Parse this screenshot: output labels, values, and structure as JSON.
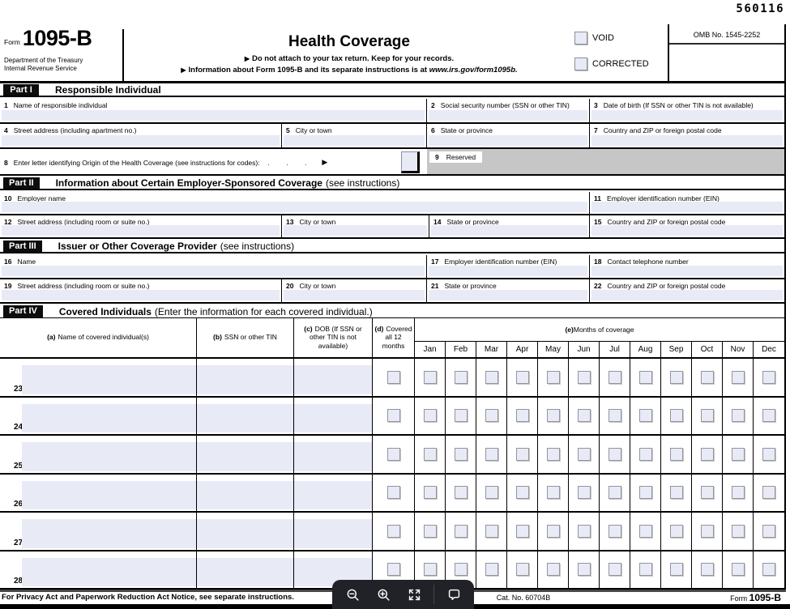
{
  "serial": "560116",
  "colors": {
    "field_bg": "#e8eaf6",
    "reserved_bg": "#c6c6c6",
    "toolbar_bg": "#212227",
    "part_tab_bg": "#0d0d0d"
  },
  "header": {
    "form_label": "Form",
    "form_number": "1095-B",
    "dept_line1": "Department of the Treasury",
    "dept_line2": "Internal Revenue Service",
    "title": "Health Coverage",
    "arrow": "▶",
    "instruction1": "Do not attach to your tax return. Keep for your records.",
    "instruction2_prefix": "Information about Form 1095-B and its separate instructions is at ",
    "instruction2_url": "www.irs.gov/form1095b.",
    "void_label": "VOID",
    "corrected_label": "CORRECTED",
    "omb": "OMB No. 1545-2252"
  },
  "part1": {
    "tab": "Part I",
    "title": "Responsible Individual",
    "f1": {
      "n": "1",
      "label": "Name of responsible individual"
    },
    "f2": {
      "n": "2",
      "label": "Social security number (SSN or other TIN)"
    },
    "f3": {
      "n": "3",
      "label": "Date of birth (If SSN or other TIN is not available)"
    },
    "f4": {
      "n": "4",
      "label": "Street address (including apartment no.)"
    },
    "f5": {
      "n": "5",
      "label": "City or town"
    },
    "f6": {
      "n": "6",
      "label": "State or province"
    },
    "f7": {
      "n": "7",
      "label": "Country and ZIP or foreign postal code"
    },
    "f8": {
      "n": "8",
      "label": "Enter letter identifying Origin of the Health Coverage (see instructions for codes):",
      "leader": ".  .  .",
      "arrow": "▶"
    },
    "f9": {
      "n": "9",
      "label": "Reserved"
    }
  },
  "part2": {
    "tab": "Part II",
    "title": "Information about Certain Employer-Sponsored Coverage",
    "note": "(see instructions)",
    "f10": {
      "n": "10",
      "label": "Employer name"
    },
    "f11": {
      "n": "11",
      "label": "Employer identification number (EIN)"
    },
    "f12": {
      "n": "12",
      "label": "Street address (including room or suite no.)"
    },
    "f13": {
      "n": "13",
      "label": "City or town"
    },
    "f14": {
      "n": "14",
      "label": "State or province"
    },
    "f15": {
      "n": "15",
      "label": "Country and ZIP or foreign postal code"
    }
  },
  "part3": {
    "tab": "Part III",
    "title": "Issuer or Other Coverage Provider",
    "note": "(see instructions)",
    "f16": {
      "n": "16",
      "label": "Name"
    },
    "f17": {
      "n": "17",
      "label": "Employer identification number (EIN)"
    },
    "f18": {
      "n": "18",
      "label": "Contact telephone number"
    },
    "f19": {
      "n": "19",
      "label": "Street address (including room or suite no.)"
    },
    "f20": {
      "n": "20",
      "label": "City or town"
    },
    "f21": {
      "n": "21",
      "label": "State or province"
    },
    "f22": {
      "n": "22",
      "label": "Country and ZIP or foreign postal code"
    }
  },
  "part4": {
    "tab": "Part IV",
    "title": "Covered Individuals",
    "note": "(Enter the information for each covered individual.)",
    "cols": {
      "a": {
        "tag": "(a)",
        "text": "Name of covered individual(s)"
      },
      "b": {
        "tag": "(b)",
        "text": "SSN or other TIN"
      },
      "c": {
        "tag": "(c)",
        "text": "DOB (If SSN or other TIN is not available)"
      },
      "d": {
        "tag": "(d)",
        "text": "Covered all 12 months"
      },
      "e": {
        "tag": "(e)",
        "text": "Months of coverage"
      }
    },
    "months": [
      "Jan",
      "Feb",
      "Mar",
      "Apr",
      "May",
      "Jun",
      "Jul",
      "Aug",
      "Sep",
      "Oct",
      "Nov",
      "Dec"
    ],
    "row_numbers": [
      "23",
      "24",
      "25",
      "26",
      "27",
      "28"
    ]
  },
  "footer": {
    "privacy": "For Privacy Act and Paperwork Reduction Act Notice, see separate instructions.",
    "cat": "Cat. No. 60704B",
    "form_label": "Form",
    "form_number": "1095-B"
  },
  "toolbar": {
    "icons": [
      "zoom-out",
      "zoom-in",
      "fullscreen",
      "comment"
    ]
  }
}
